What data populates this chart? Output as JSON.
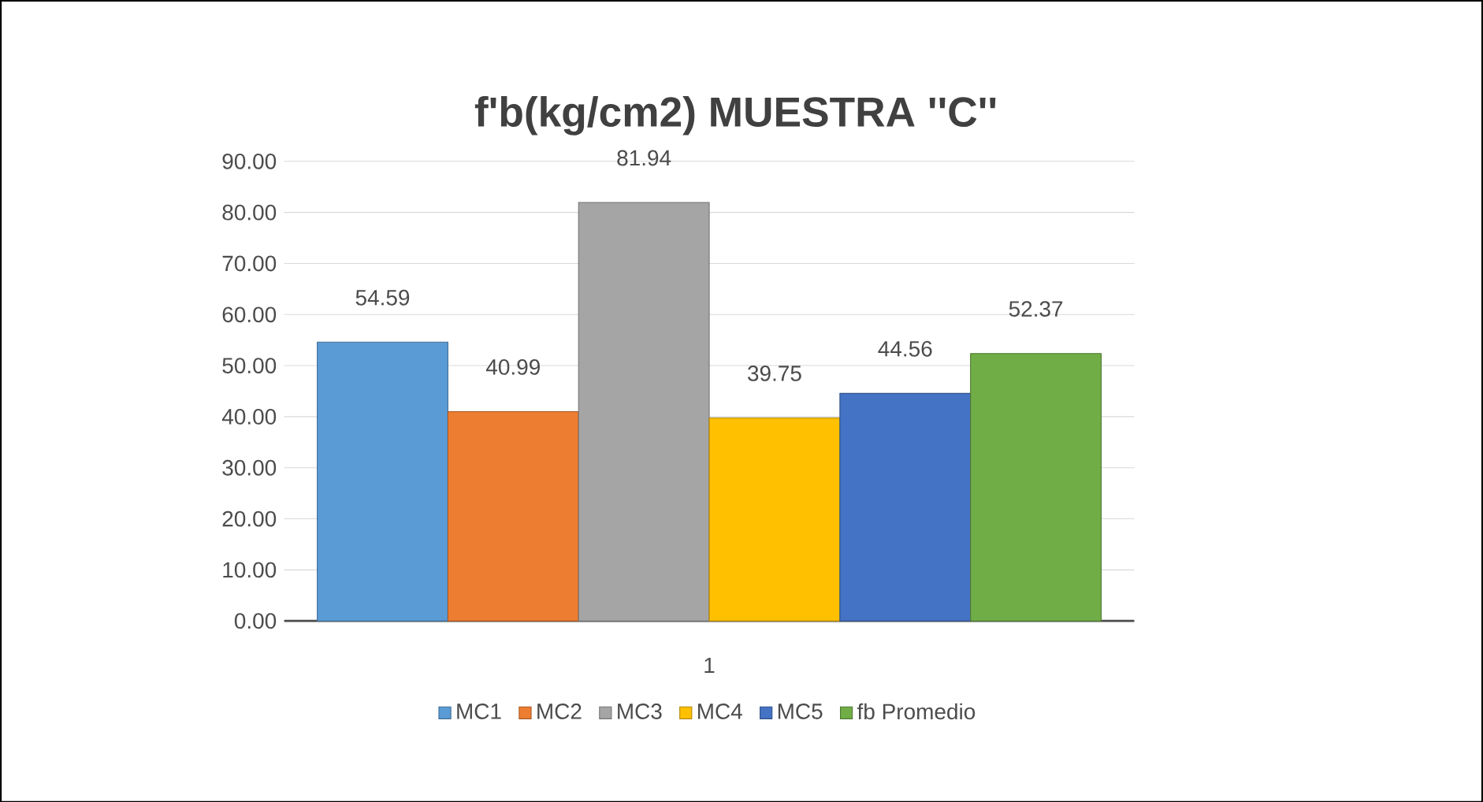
{
  "chart_data": {
    "type": "bar",
    "title": "f'b(kg/cm2) MUESTRA ''C''",
    "categories": [
      "1"
    ],
    "series": [
      {
        "name": "MC1",
        "color": "#5b9bd5",
        "values": [
          54.59
        ],
        "value_labels": [
          "54.59"
        ]
      },
      {
        "name": "MC2",
        "color": "#ed7d31",
        "values": [
          40.99
        ],
        "value_labels": [
          "40.99"
        ]
      },
      {
        "name": "MC3",
        "color": "#a5a5a5",
        "values": [
          81.94
        ],
        "value_labels": [
          "81.94"
        ]
      },
      {
        "name": "MC4",
        "color": "#ffc000",
        "values": [
          39.75
        ],
        "value_labels": [
          "39.75"
        ]
      },
      {
        "name": "MC5",
        "color": "#4472c4",
        "values": [
          44.56
        ],
        "value_labels": [
          "44.56"
        ]
      },
      {
        "name": "fb Promedio",
        "color": "#70ad47",
        "values": [
          52.37
        ],
        "value_labels": [
          "52.37"
        ]
      }
    ],
    "ylim": [
      0,
      90
    ],
    "yticks": [
      {
        "value": 0,
        "label": "0.00"
      },
      {
        "value": 10,
        "label": "10.00"
      },
      {
        "value": 20,
        "label": "20.00"
      },
      {
        "value": 30,
        "label": "30.00"
      },
      {
        "value": 40,
        "label": "40.00"
      },
      {
        "value": 50,
        "label": "50.00"
      },
      {
        "value": 60,
        "label": "60.00"
      },
      {
        "value": 70,
        "label": "70.00"
      },
      {
        "value": 80,
        "label": "80.00"
      },
      {
        "value": 90,
        "label": "90.00"
      }
    ],
    "grid": "y",
    "legend": "bottom"
  }
}
